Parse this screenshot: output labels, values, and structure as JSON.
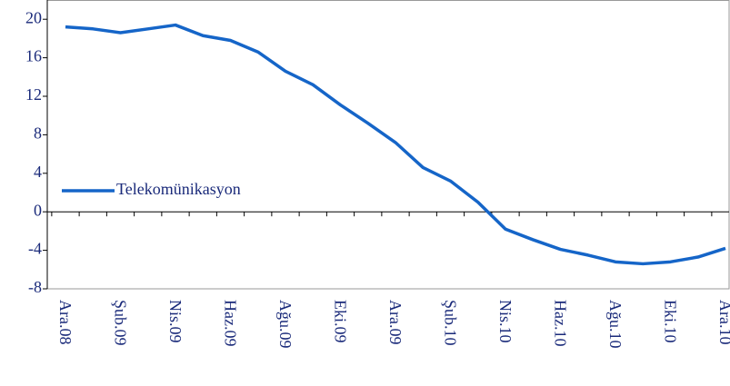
{
  "chart_data": {
    "type": "line",
    "categories": [
      "Ara.08",
      null,
      "Şub.09",
      null,
      "Nis.09",
      null,
      "Haz.09",
      null,
      "Ağu.09",
      null,
      "Eki.09",
      null,
      "Ara.09",
      null,
      "Şub.10",
      null,
      "Nis.10",
      null,
      "Haz.10",
      null,
      "Ağu.10",
      null,
      "Eki.10",
      null,
      "Ara.10"
    ],
    "series": [
      {
        "name": "Telekomünikasyon",
        "color": "#1565c8",
        "values": [
          19.2,
          19.0,
          18.6,
          19.0,
          19.4,
          18.3,
          17.8,
          16.6,
          14.6,
          13.2,
          11.1,
          9.2,
          7.2,
          4.6,
          3.2,
          1.0,
          -1.8,
          -2.9,
          -3.9,
          -4.5,
          -5.2,
          -5.4,
          -5.2,
          -4.7,
          -3.8
        ]
      }
    ],
    "ylim": [
      -8,
      22
    ],
    "yticks": [
      -8,
      -4,
      0,
      4,
      8,
      12,
      16,
      20
    ]
  }
}
